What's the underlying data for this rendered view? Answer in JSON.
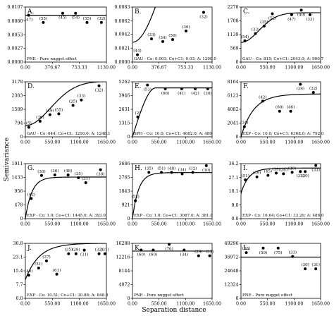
{
  "figure": {
    "ylabel": "Semivariance",
    "xlabel": "Separation distance"
  },
  "chart_data": [
    {
      "type": "scatter",
      "letter": "A.",
      "model": "PNE - Pure nugget effect",
      "model_kind": "pne",
      "sill": 0.0091,
      "xlim": [
        0,
        1130
      ],
      "ylim": [
        0,
        0.0107
      ],
      "x_ticks": [
        0,
        376.67,
        753.33,
        1130
      ],
      "x_tick_labels": [
        "0.00",
        "376.67",
        "753.33",
        "1130.00"
      ],
      "y_ticks": [
        0,
        0.0027,
        0.0053,
        0.008,
        0.0107
      ],
      "y_tick_labels": [
        "0.0000",
        "0.0027",
        "0.0053",
        "0.0080",
        "0.0107"
      ],
      "points": [
        {
          "x": 45,
          "y": 0.0091,
          "n": "(47)"
        },
        {
          "x": 250,
          "y": 0.0077,
          "n": "(55)"
        },
        {
          "x": 520,
          "y": 0.0095,
          "n": "(45)"
        },
        {
          "x": 700,
          "y": 0.0095,
          "n": "(54)"
        },
        {
          "x": 860,
          "y": 0.0077,
          "n": "(55)"
        },
        {
          "x": 1060,
          "y": 0.0077,
          "n": "(32)"
        }
      ]
    },
    {
      "type": "scatter",
      "letter": "B.",
      "model": "GAU - Co: 0.003; Co+C1: 0.03; A: 1200.0",
      "model_kind": "gau",
      "c0": 0.003,
      "sill": 0.03,
      "range": 1200,
      "xlim": [
        0,
        1130
      ],
      "ylim": [
        0,
        0.0083
      ],
      "x_ticks": [
        0,
        376.67,
        753.33,
        1130
      ],
      "x_tick_labels": [
        "0.00",
        "376.67",
        "753.33",
        "1130.00"
      ],
      "y_ticks": [
        0,
        0.0021,
        0.0042,
        0.0062,
        0.0083
      ],
      "y_tick_labels": [
        "0.0000",
        "0.0021",
        "0.0042",
        "0.0062",
        "0.0083"
      ],
      "points": [
        {
          "x": 70,
          "y": 0.0011,
          "n": "(44)"
        },
        {
          "x": 270,
          "y": 0.0035,
          "n": "(33)"
        },
        {
          "x": 430,
          "y": 0.0031,
          "n": "(34)"
        },
        {
          "x": 570,
          "y": 0.0034,
          "n": "(56)"
        },
        {
          "x": 760,
          "y": 0.0047,
          "n": "(36)"
        },
        {
          "x": 1010,
          "y": 0.0075,
          "n": "(32)"
        }
      ]
    },
    {
      "type": "scatter",
      "letter": "C.",
      "model": "GAU - Co: 815; Co+C1: 2043.0; A: 900.7",
      "model_kind": "gau",
      "c0": 815,
      "sill": 2043,
      "range": 900.7,
      "xlim": [
        0,
        1650
      ],
      "ylim": [
        0,
        2278
      ],
      "x_ticks": [
        0,
        550,
        1100,
        1650
      ],
      "x_tick_labels": [
        "0.00",
        "550.00",
        "1100.00",
        "1650.00"
      ],
      "y_ticks": [
        0,
        569,
        1139,
        1708,
        2278
      ],
      "y_tick_labels": [
        "0",
        "569",
        "1139",
        "1708",
        "2278"
      ],
      "points": [
        {
          "x": 80,
          "y": 880,
          "n": "(54)"
        },
        {
          "x": 300,
          "y": 1180,
          "n": "(33)"
        },
        {
          "x": 480,
          "y": 1490,
          "n": "(35)"
        },
        {
          "x": 650,
          "y": 2000,
          "n": "(52)"
        },
        {
          "x": 1050,
          "y": 1960,
          "n": "(47)"
        },
        {
          "x": 1250,
          "y": 2150,
          "n": "(40)"
        },
        {
          "x": 1430,
          "y": 1960,
          "n": "(33)"
        }
      ]
    },
    {
      "type": "scatter",
      "letter": "D.",
      "model": "GAU - Co: 644; Co+C1: 3216.0; A: 1248.1",
      "model_kind": "gau",
      "c0": 644,
      "sill": 3216,
      "range": 1248.1,
      "xlim": [
        0,
        1650
      ],
      "ylim": [
        0,
        3178
      ],
      "x_ticks": [
        0,
        550,
        1100,
        1650
      ],
      "x_tick_labels": [
        "0.00",
        "550.00",
        "1100.00",
        "1650.00"
      ],
      "y_ticks": [
        0,
        794,
        1589,
        2383,
        3178
      ],
      "y_tick_labels": [
        "0",
        "794",
        "1589",
        "2383",
        "3178"
      ],
      "points": [
        {
          "x": 70,
          "y": 550,
          "n": "(5)"
        },
        {
          "x": 300,
          "y": 900,
          "n": "(36)"
        },
        {
          "x": 500,
          "y": 1280,
          "n": "(49)"
        },
        {
          "x": 680,
          "y": 1330,
          "n": "(55)"
        },
        {
          "x": 970,
          "y": 1820,
          "n": "(25)"
        },
        {
          "x": 1140,
          "y": 2130,
          "n": "(33)"
        },
        {
          "x": 1500,
          "y": 2950,
          "n": "(32)"
        }
      ]
    },
    {
      "type": "scatter",
      "letter": "E.",
      "model": "SPH - Co: 10.0; Co+C1: 4682.0; A: 480",
      "model_kind": "sph",
      "c0": 10,
      "sill": 4682,
      "range": 480,
      "xlim": [
        0,
        1650
      ],
      "ylim": [
        0,
        5262
      ],
      "x_ticks": [
        0,
        550,
        1100,
        1650
      ],
      "x_tick_labels": [
        "0.00",
        "550.00",
        "1100.00",
        "1650.00"
      ],
      "y_ticks": [
        0,
        1315,
        2631,
        3946,
        5262
      ],
      "y_tick_labels": [
        "0",
        "1315",
        "2631",
        "3946",
        "5262"
      ],
      "points": [
        {
          "x": 110,
          "y": 1900,
          "n": "(2)"
        },
        {
          "x": 310,
          "y": 4950,
          "n": "(53)"
        },
        {
          "x": 680,
          "y": 4600,
          "n": "(66)"
        },
        {
          "x": 1020,
          "y": 4600,
          "n": "(41)"
        },
        {
          "x": 1300,
          "y": 4600,
          "n": "(42)"
        },
        {
          "x": 1560,
          "y": 4600,
          "n": "(30)"
        }
      ]
    },
    {
      "type": "scatter",
      "letter": "F.",
      "model": "EXP - Co: 10.0; Co+C1: 6368.0; A: 792.0",
      "model_kind": "exp",
      "c0": 10,
      "sill": 6368,
      "range": 792,
      "xlim": [
        0,
        1650
      ],
      "ylim": [
        0,
        8164
      ],
      "x_ticks": [
        0,
        550,
        1100,
        1650
      ],
      "x_tick_labels": [
        "0.00",
        "550.00",
        "1100.00",
        "1650.00"
      ],
      "y_ticks": [
        0,
        2041,
        4082,
        6123,
        8164
      ],
      "y_tick_labels": [
        "0",
        "2041",
        "4082",
        "6123",
        "8164"
      ],
      "points": [
        {
          "x": 70,
          "y": 1500,
          "n": "(34)"
        },
        {
          "x": 450,
          "y": 5300,
          "n": "(42)"
        },
        {
          "x": 800,
          "y": 3800,
          "n": "(60)"
        },
        {
          "x": 1030,
          "y": 3800,
          "n": "(46)"
        },
        {
          "x": 1230,
          "y": 7800,
          "n": "(39)"
        },
        {
          "x": 1500,
          "y": 6600,
          "n": "(32)"
        }
      ]
    },
    {
      "type": "scatter",
      "letter": "G.",
      "model": "EXP - Co: 1.0; Co+C1: 1445.0; A: 393.0",
      "model_kind": "exp",
      "c0": 1,
      "sill": 1445,
      "range": 393,
      "xlim": [
        0,
        1650
      ],
      "ylim": [
        0,
        1911
      ],
      "x_ticks": [
        0,
        550,
        1100,
        1650
      ],
      "x_tick_labels": [
        "0.00",
        "550.00",
        "1100.00",
        "1650.00"
      ],
      "y_ticks": [
        0,
        478,
        956,
        1433,
        1911
      ],
      "y_tick_labels": [
        "0",
        "478",
        "956",
        "1433",
        "1911"
      ],
      "points": [
        {
          "x": 120,
          "y": 700,
          "n": "(42)"
        },
        {
          "x": 330,
          "y": 1500,
          "n": "(30)"
        },
        {
          "x": 600,
          "y": 1520,
          "n": "(36)"
        },
        {
          "x": 870,
          "y": 1520,
          "n": "(48)"
        },
        {
          "x": 1080,
          "y": 1420,
          "n": "(35)"
        },
        {
          "x": 1230,
          "y": 1250,
          "n": "(31)"
        },
        {
          "x": 1530,
          "y": 1700,
          "n": "(30)"
        }
      ]
    },
    {
      "type": "scatter",
      "letter": "H.",
      "model": "EXP - Co: 1.0; Co+C1: 3087.0; A: 381.0",
      "model_kind": "exp",
      "c0": 1,
      "sill": 3087,
      "range": 381,
      "xlim": [
        0,
        1650
      ],
      "ylim": [
        0,
        3686
      ],
      "x_ticks": [
        0,
        550,
        1100,
        1650
      ],
      "x_tick_labels": [
        "0.00",
        "550.00",
        "1100.00",
        "1650.00"
      ],
      "y_ticks": [
        0,
        921,
        1843,
        2765,
        3686
      ],
      "y_tick_labels": [
        "0",
        "921",
        "1843",
        "2765",
        "3686"
      ],
      "points": [
        {
          "x": 60,
          "y": 1200,
          "n": "(52)"
        },
        {
          "x": 340,
          "y": 3100,
          "n": "(35)"
        },
        {
          "x": 600,
          "y": 3100,
          "n": "(51)"
        },
        {
          "x": 810,
          "y": 3100,
          "n": "(48)"
        },
        {
          "x": 1030,
          "y": 3000,
          "n": "(34)"
        },
        {
          "x": 1250,
          "y": 3100,
          "n": "(32)"
        },
        {
          "x": 1530,
          "y": 3550,
          "n": "(30)"
        }
      ]
    },
    {
      "type": "scatter",
      "letter": "I.",
      "model": "EXP - Co: 16.64; Co+C1: 33.29; A: 486.0",
      "model_kind": "exp",
      "c0": 16.64,
      "sill": 33.29,
      "range": 486,
      "xlim": [
        0,
        1650
      ],
      "ylim": [
        0,
        36.2
      ],
      "x_ticks": [
        0,
        550,
        1100,
        1650
      ],
      "x_tick_labels": [
        "0.00",
        "550.00",
        "1100.00",
        "1650.00"
      ],
      "y_ticks": [
        0,
        9.0,
        18.1,
        27.1,
        36.2
      ],
      "y_tick_labels": [
        "0.0",
        "9.0",
        "18.1",
        "27.1",
        "36.2"
      ],
      "points": [
        {
          "x": 90,
          "y": 25.5,
          "n": "(51)"
        },
        {
          "x": 330,
          "y": 27.5,
          "n": "(39)"
        },
        {
          "x": 560,
          "y": 28.5,
          "n": "(45)"
        },
        {
          "x": 730,
          "y": 30,
          "n": "(39)"
        },
        {
          "x": 880,
          "y": 29.5,
          "n": "(36)"
        },
        {
          "x": 1060,
          "y": 30.5,
          "n": "(30)"
        },
        {
          "x": 1230,
          "y": 31,
          "n": "(33)"
        },
        {
          "x": 1330,
          "y": 31,
          "n": "(30)"
        },
        {
          "x": 1550,
          "y": 35,
          "n": "(33)"
        }
      ]
    },
    {
      "type": "scatter",
      "letter": "J.",
      "model": "EXP - Co: 10.51; Co+C1: 30.88; A: 848.0",
      "model_kind": "exp",
      "c0": 10.51,
      "sill": 30.88,
      "range": 848,
      "xlim": [
        0,
        1650
      ],
      "ylim": [
        0,
        30.8
      ],
      "x_ticks": [
        0,
        550,
        1100,
        1650
      ],
      "x_tick_labels": [
        "0.00",
        "550.00",
        "1100.00",
        "1650.00"
      ],
      "y_ticks": [
        0,
        7.7,
        15.4,
        23.1,
        30.8
      ],
      "y_tick_labels": [
        "0.0",
        "7.7",
        "15.4",
        "23.1",
        "30.8"
      ],
      "points": [
        {
          "x": 70,
          "y": 13,
          "n": "(46)"
        },
        {
          "x": 270,
          "y": 17,
          "n": "(51)"
        },
        {
          "x": 430,
          "y": 21,
          "n": "(37)"
        },
        {
          "x": 640,
          "y": 13.5,
          "n": "(61)"
        },
        {
          "x": 880,
          "y": 25,
          "n": "(35)"
        },
        {
          "x": 1030,
          "y": 25,
          "n": "(29)"
        },
        {
          "x": 1200,
          "y": 27,
          "n": "(31)"
        },
        {
          "x": 1500,
          "y": 25,
          "n": "(32)"
        },
        {
          "x": 1620,
          "y": 25,
          "n": "(31)"
        }
      ]
    },
    {
      "type": "scatter",
      "letter": "K.",
      "model": "PNE - Pure nugget effect",
      "model_kind": "pne",
      "sill": 14000,
      "xlim": [
        0,
        1650
      ],
      "ylim": [
        0,
        16288
      ],
      "x_ticks": [
        0,
        550,
        1100,
        1650
      ],
      "x_tick_labels": [
        "0.00",
        "550.00",
        "1100.00",
        "1650.00"
      ],
      "y_ticks": [
        0,
        4072,
        8144,
        12216,
        16288
      ],
      "y_tick_labels": [
        "0",
        "4072",
        "8144",
        "12216",
        "16288"
      ],
      "points": [
        {
          "x": 180,
          "y": 14300,
          "n": "(60)"
        },
        {
          "x": 430,
          "y": 14300,
          "n": "(60)"
        },
        {
          "x": 760,
          "y": 16000,
          "n": "(76)"
        },
        {
          "x": 1070,
          "y": 14300,
          "n": "(34)"
        },
        {
          "x": 1370,
          "y": 12600,
          "n": "(29)"
        },
        {
          "x": 1600,
          "y": 12600,
          "n": "(33)"
        }
      ]
    },
    {
      "type": "scatter",
      "letter": "L.",
      "model": "PNE - Pure nugget effect",
      "model_kind": "pne",
      "sill": 36972,
      "xlim": [
        0,
        1650
      ],
      "ylim": [
        0,
        49296
      ],
      "x_ticks": [
        0,
        550,
        1100,
        1650
      ],
      "x_tick_labels": [
        "0.00",
        "550.00",
        "1100.00",
        "1650.00"
      ],
      "y_ticks": [
        0,
        12324,
        24648,
        36972,
        49296
      ],
      "y_tick_labels": [
        "0",
        "12324",
        "24648",
        "36972",
        "49296"
      ],
      "points": [
        {
          "x": 110,
          "y": 41000,
          "n": "(68)"
        },
        {
          "x": 460,
          "y": 45000,
          "n": "(59)"
        },
        {
          "x": 770,
          "y": 45000,
          "n": "(75)"
        },
        {
          "x": 1070,
          "y": 37500,
          "n": "(33)"
        },
        {
          "x": 1330,
          "y": 26500,
          "n": "(30)"
        },
        {
          "x": 1550,
          "y": 26500,
          "n": "(31)"
        }
      ]
    }
  ]
}
